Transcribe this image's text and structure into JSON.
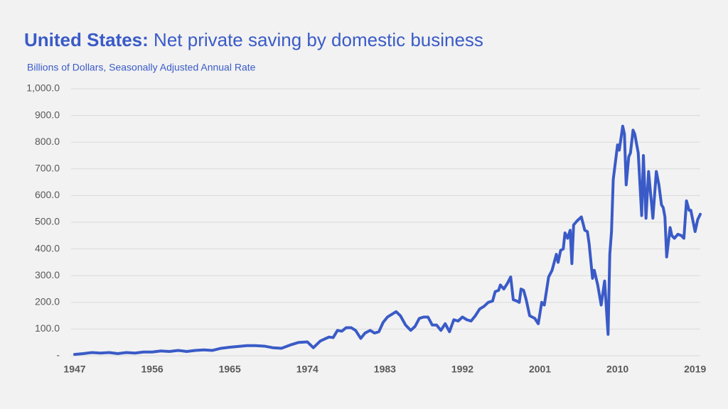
{
  "chart_data": {
    "type": "line",
    "title": {
      "lead": "United States:",
      "text": "Net private saving by domestic business"
    },
    "subtitle": "Billions of Dollars, Seasonally Adjusted Annual Rate",
    "color": "#3a5bc7",
    "grid": true,
    "xlim": [
      1947,
      2019.6
    ],
    "xticks": [
      1947,
      1956,
      1965,
      1974,
      1983,
      1992,
      2001,
      2010,
      2019
    ],
    "ylim": [
      0,
      1000
    ],
    "yticks": [
      {
        "value": 0,
        "label": "-"
      },
      {
        "value": 100,
        "label": "100.0"
      },
      {
        "value": 200,
        "label": "200.0"
      },
      {
        "value": 300,
        "label": "300.0"
      },
      {
        "value": 400,
        "label": "400.0"
      },
      {
        "value": 500,
        "label": "500.0"
      },
      {
        "value": 600,
        "label": "600.0"
      },
      {
        "value": 700,
        "label": "700.0"
      },
      {
        "value": 800,
        "label": "800.0"
      },
      {
        "value": 900,
        "label": "900.0"
      },
      {
        "value": 1000,
        "label": "1,000.0"
      }
    ],
    "x": [
      1947,
      1948,
      1949,
      1950,
      1951,
      1952,
      1953,
      1954,
      1955,
      1956,
      1957,
      1958,
      1959,
      1960,
      1961,
      1962,
      1963,
      1964,
      1965,
      1966,
      1967,
      1968,
      1969,
      1970,
      1971,
      1972,
      1973,
      1974,
      1974.7,
      1975.5,
      1976.5,
      1977,
      1977.5,
      1978,
      1978.5,
      1979.1,
      1979.6,
      1980.2,
      1980.7,
      1981.3,
      1981.8,
      1982.3,
      1982.8,
      1983.3,
      1983.8,
      1984.3,
      1984.8,
      1985.4,
      1986,
      1986.5,
      1987,
      1987.5,
      1988,
      1988.5,
      1989,
      1989.5,
      1990,
      1990.5,
      1991,
      1991.5,
      1992,
      1992.5,
      1993,
      1993.5,
      1994,
      1994.5,
      1995,
      1995.5,
      1995.8,
      1996.2,
      1996.4,
      1996.8,
      1997.2,
      1997.6,
      1997.9,
      1998.3,
      1998.6,
      1998.8,
      1999.1,
      1999.4,
      1999.8,
      2000.4,
      2000.8,
      2001.2,
      2001.5,
      2002,
      2002.4,
      2002.9,
      2003.1,
      2003.4,
      2003.7,
      2003.9,
      2004.2,
      2004.5,
      2004.7,
      2004.9,
      2005.3,
      2005.8,
      2006.2,
      2006.5,
      2006.7,
      2007.1,
      2007.3,
      2007.7,
      2008.1,
      2008.5,
      2008.9,
      2009.1,
      2009.3,
      2009.5,
      2010,
      2010.2,
      2010.6,
      2010.8,
      2011,
      2011.3,
      2011.5,
      2011.8,
      2012,
      2012.4,
      2012.8,
      2013,
      2013.3,
      2013.6,
      2014.1,
      2014.5,
      2014.8,
      2015.1,
      2015.3,
      2015.5,
      2015.7,
      2016.1,
      2016.3,
      2016.6,
      2017,
      2017.4,
      2017.7,
      2018,
      2018.3,
      2018.5,
      2019,
      2019.3,
      2019.6
    ],
    "values": [
      5,
      8,
      12,
      10,
      12,
      8,
      12,
      10,
      14,
      14,
      18,
      16,
      20,
      16,
      20,
      22,
      20,
      28,
      32,
      35,
      38,
      38,
      36,
      30,
      28,
      40,
      50,
      52,
      30,
      55,
      70,
      68,
      95,
      92,
      105,
      105,
      95,
      65,
      85,
      95,
      85,
      90,
      125,
      145,
      155,
      165,
      150,
      115,
      95,
      110,
      140,
      145,
      145,
      115,
      115,
      95,
      120,
      90,
      135,
      130,
      145,
      135,
      130,
      150,
      175,
      185,
      200,
      205,
      240,
      245,
      265,
      250,
      270,
      295,
      210,
      205,
      200,
      250,
      245,
      210,
      150,
      140,
      120,
      200,
      190,
      295,
      320,
      380,
      350,
      395,
      400,
      460,
      440,
      470,
      345,
      490,
      505,
      520,
      470,
      465,
      420,
      290,
      320,
      265,
      190,
      280,
      80,
      380,
      465,
      660,
      790,
      770,
      860,
      830,
      640,
      745,
      760,
      845,
      830,
      760,
      525,
      750,
      515,
      690,
      515,
      690,
      640,
      565,
      555,
      520,
      370,
      480,
      450,
      440,
      455,
      450,
      440,
      580,
      545,
      545,
      465,
      510,
      530
    ]
  }
}
